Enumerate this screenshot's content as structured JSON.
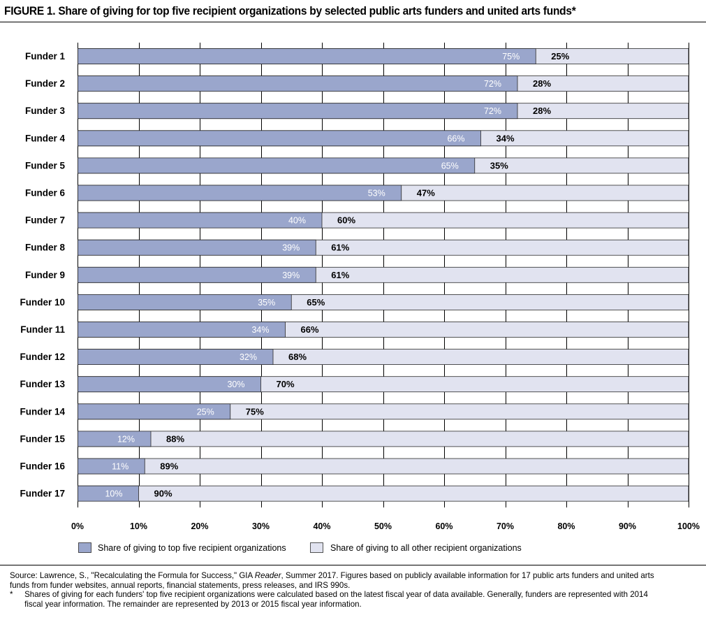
{
  "figure": {
    "title": "FIGURE 1. Share of giving for top five recipient organizations by selected public arts funders and united arts funds*"
  },
  "source": {
    "text_before_reader": "Source: Lawrence, S., \"Recalculating the Formula for Success,\" GIA",
    "reader_word": "Reader",
    "text_after_reader": ", Summer 2017. Figures based on publicly available information for 17 public arts funders and united arts funds from funder websites, annual reports, financial statements, press releases, and IRS 990s.",
    "note_marker": "*",
    "note_text": "Shares of giving for each funders' top five recipient organizations were calculated based on the latest fiscal year of data available. Generally, funders are represented with 2014 fiscal year information. The remainder are represented by 2013 or 2015 fiscal year information."
  },
  "colors": {
    "top_five": "#9aa6cc",
    "other": "#e1e3f0",
    "grid": "#000000"
  },
  "chart_data": {
    "type": "bar",
    "orientation": "horizontal",
    "stacked": true,
    "categories": [
      "Funder 1",
      "Funder 2",
      "Funder 3",
      "Funder 4",
      "Funder 5",
      "Funder 6",
      "Funder 7",
      "Funder 8",
      "Funder 9",
      "Funder 10",
      "Funder 11",
      "Funder 12",
      "Funder 13",
      "Funder 14",
      "Funder 15",
      "Funder 16",
      "Funder 17"
    ],
    "series": [
      {
        "name": "Share of giving to top five recipient organizations",
        "values": [
          75,
          72,
          72,
          66,
          65,
          53,
          40,
          39,
          39,
          35,
          34,
          32,
          30,
          25,
          12,
          11,
          10
        ],
        "labels": [
          "75%",
          "72%",
          "72%",
          "66%",
          "65%",
          "53%",
          "40%",
          "39%",
          "39%",
          "35%",
          "34%",
          "32%",
          "30%",
          "25%",
          "12%",
          "11%",
          "10%"
        ]
      },
      {
        "name": "Share of giving to all other recipient organizations",
        "values": [
          25,
          28,
          28,
          34,
          35,
          47,
          60,
          61,
          61,
          65,
          66,
          68,
          70,
          75,
          88,
          89,
          90
        ],
        "labels": [
          "25%",
          "28%",
          "28%",
          "34%",
          "35%",
          "47%",
          "60%",
          "61%",
          "61%",
          "65%",
          "66%",
          "68%",
          "70%",
          "75%",
          "88%",
          "89%",
          "90%"
        ]
      }
    ],
    "xticks": [
      "0%",
      "10%",
      "20%",
      "30%",
      "40%",
      "50%",
      "60%",
      "70%",
      "80%",
      "90%",
      "100%"
    ],
    "xlim": [
      0,
      100
    ],
    "grid": "vertical",
    "legend_position": "bottom"
  }
}
